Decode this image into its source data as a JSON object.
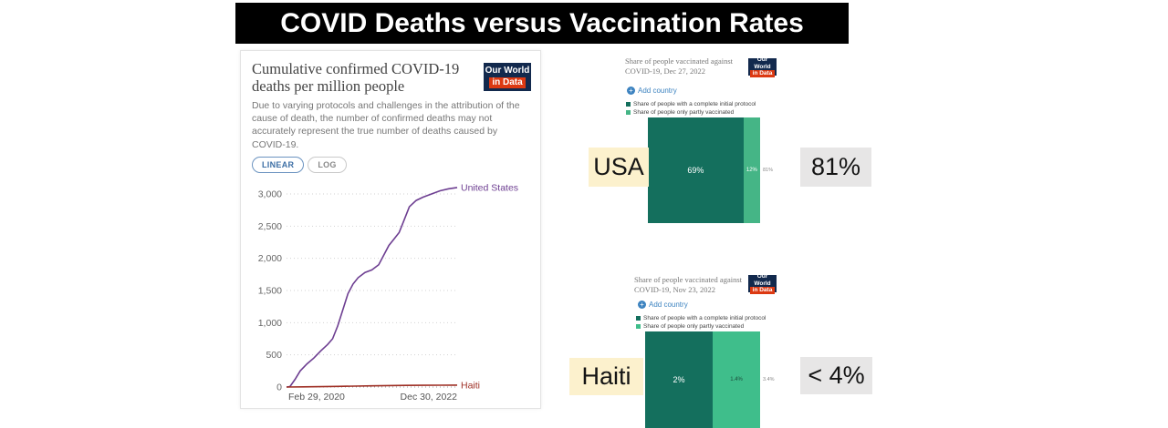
{
  "slide": {
    "title": "COVID Deaths versus Vaccination Rates"
  },
  "owid_logo": {
    "line1": "Our World",
    "line2": "in Data"
  },
  "controls": {
    "linear": "LINEAR",
    "log": "LOG",
    "add_country": "Add country"
  },
  "callouts": {
    "usa_country": "USA",
    "usa_rate": "81%",
    "haiti_country": "Haiti",
    "haiti_rate": "< 4%"
  },
  "colors": {
    "banner_bg": "#000000",
    "highlight_cream": "#fcf1cd",
    "highlight_gray": "#e7e6e6",
    "owid_navy": "#12294d",
    "owid_red": "#dc3912",
    "us_line": "#6d3e91",
    "haiti_line": "#9e2f24",
    "vaccine_complete_green": "#146f5d",
    "vaccine_partial_green": "#45b586"
  },
  "chart_data": [
    {
      "type": "line",
      "title": "Cumulative confirmed COVID-19 deaths per million people",
      "subtitle": "Due to varying protocols and challenges in the attribution of the cause of death, the number of confirmed deaths may not accurately represent the true number of deaths caused by COVID-19.",
      "xlabel": "",
      "ylabel": "",
      "x_ticks": [
        "Feb 29, 2020",
        "Dec 30, 2022"
      ],
      "y_ticks": [
        0,
        500,
        1000,
        1500,
        2000,
        2500,
        3000
      ],
      "y_tick_labels": [
        "0",
        "500",
        "1,000",
        "1,500",
        "2,000",
        "2,500",
        "3,000"
      ],
      "ylim": [
        0,
        3200
      ],
      "grid": true,
      "legend_position": "line-end-labels",
      "series": [
        {
          "name": "United States",
          "color": "#6d3e91",
          "points": [
            [
              0,
              0
            ],
            [
              0.02,
              5
            ],
            [
              0.05,
              120
            ],
            [
              0.08,
              250
            ],
            [
              0.12,
              360
            ],
            [
              0.16,
              450
            ],
            [
              0.2,
              560
            ],
            [
              0.24,
              660
            ],
            [
              0.27,
              750
            ],
            [
              0.3,
              950
            ],
            [
              0.33,
              1200
            ],
            [
              0.36,
              1450
            ],
            [
              0.39,
              1600
            ],
            [
              0.42,
              1700
            ],
            [
              0.46,
              1780
            ],
            [
              0.5,
              1820
            ],
            [
              0.54,
              1900
            ],
            [
              0.57,
              2050
            ],
            [
              0.6,
              2200
            ],
            [
              0.63,
              2300
            ],
            [
              0.66,
              2400
            ],
            [
              0.69,
              2600
            ],
            [
              0.72,
              2800
            ],
            [
              0.76,
              2900
            ],
            [
              0.8,
              2950
            ],
            [
              0.85,
              3000
            ],
            [
              0.9,
              3050
            ],
            [
              0.95,
              3080
            ],
            [
              1,
              3100
            ]
          ]
        },
        {
          "name": "Haiti",
          "color": "#9e2f24",
          "points": [
            [
              0,
              0
            ],
            [
              0.1,
              3
            ],
            [
              0.2,
              6
            ],
            [
              0.3,
              10
            ],
            [
              0.4,
              14
            ],
            [
              0.5,
              18
            ],
            [
              0.6,
              22
            ],
            [
              0.7,
              25
            ],
            [
              0.8,
              27
            ],
            [
              0.9,
              29
            ],
            [
              1,
              30
            ]
          ]
        }
      ]
    },
    {
      "type": "bar",
      "title": "Share of people vaccinated against COVID-19, Dec 27, 2022",
      "country": "USA",
      "segments": [
        {
          "label": "Share of people with a complete initial protocol",
          "value": 69,
          "display": "69%",
          "color": "#146f5d",
          "label_color": "#ffffff",
          "label_size": 9
        },
        {
          "label": "Share of people only partly vaccinated",
          "value": 12,
          "display": "12%",
          "color": "#45b586",
          "label_color": "#ffffff",
          "label_size": 6
        }
      ],
      "total_label": "81%"
    },
    {
      "type": "bar",
      "title": "Share of people vaccinated against COVID-19, Nov 23, 2022",
      "country": "Haiti",
      "segments": [
        {
          "label": "Share of people with a complete initial protocol",
          "value": 2,
          "display": "2%",
          "color": "#146f5d",
          "label_color": "#ffffff",
          "label_size": 9
        },
        {
          "label": "Share of people only partly vaccinated",
          "value": 1.4,
          "display": "1.4%",
          "color": "#3fbe8b",
          "label_color": "#1c4c3c",
          "label_size": 6
        }
      ],
      "total_label": "3.4%"
    }
  ]
}
